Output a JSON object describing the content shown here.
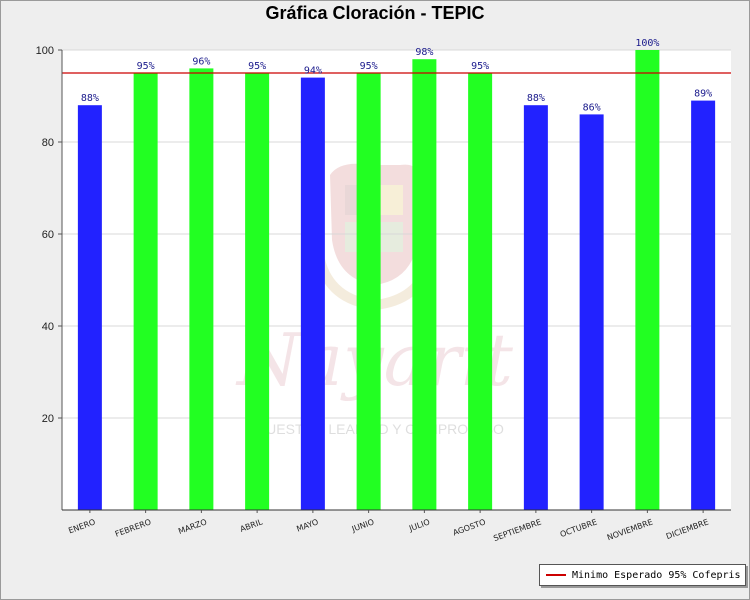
{
  "chart_data": {
    "type": "bar",
    "title": "Gráfica Cloración - TEPIC",
    "categories": [
      "ENERO",
      "FEBRERO",
      "MARZO",
      "ABRIL",
      "MAYO",
      "JUNIO",
      "JULIO",
      "AGOSTO",
      "SEPTIEMBRE",
      "OCTUBRE",
      "NOVIEMBRE",
      "DICIEMBRE"
    ],
    "values": [
      88,
      95,
      96,
      95,
      94,
      95,
      98,
      95,
      88,
      86,
      100,
      89
    ],
    "value_labels": [
      "88%",
      "95%",
      "96%",
      "95%",
      "94%",
      "95%",
      "98%",
      "95%",
      "88%",
      "86%",
      "100%",
      "89%"
    ],
    "ylim": [
      0,
      100
    ],
    "yticks": [
      20,
      40,
      60,
      80,
      100
    ],
    "grid": true,
    "reference_line": {
      "name": "Minimo Esperado 95% Cofepris",
      "value": 95,
      "color": "#cc0000"
    },
    "colors": {
      "above_threshold": "#22ff22",
      "below_threshold": "#2222ff",
      "value_label": "#1a1a8c"
    },
    "legend_position": "bottom-right"
  },
  "watermark": {
    "script_text": "Nayarit",
    "motto": "NUESTRO LEALTAD Y COMPROMISO"
  }
}
